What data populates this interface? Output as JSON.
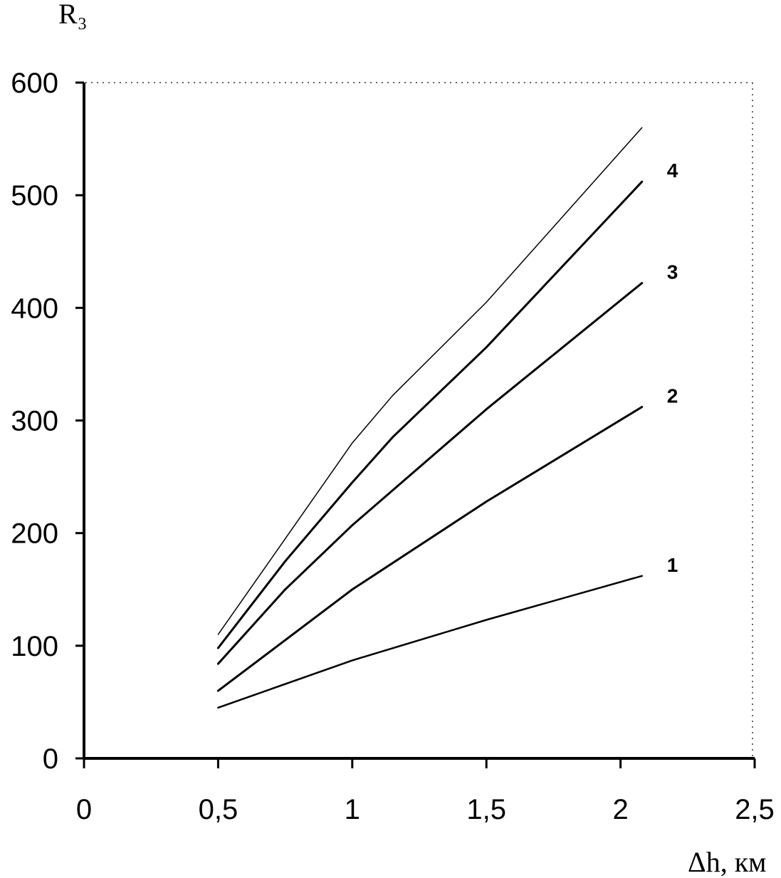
{
  "chart_data": {
    "type": "line",
    "ylabel": "R₃",
    "xlabel": "Δh, км",
    "xlim": [
      0,
      2.5
    ],
    "ylim": [
      0,
      600
    ],
    "x_ticks": [
      0,
      0.5,
      1,
      1.5,
      2,
      2.5
    ],
    "x_tick_labels": [
      "0",
      "0,5",
      "1",
      "1,5",
      "2",
      "2,5"
    ],
    "y_ticks": [
      0,
      100,
      200,
      300,
      400,
      500,
      600
    ],
    "y_tick_labels": [
      "0",
      "100",
      "200",
      "300",
      "400",
      "500",
      "600"
    ],
    "grid": false,
    "series": [
      {
        "label": "1",
        "stroke": 2.5,
        "x": [
          0.5,
          1.0,
          1.5,
          2.08
        ],
        "y": [
          45,
          87,
          123,
          162
        ]
      },
      {
        "label": "2",
        "stroke": 3.0,
        "x": [
          0.5,
          1.0,
          1.5,
          2.08
        ],
        "y": [
          60,
          150,
          228,
          312
        ]
      },
      {
        "label": "3",
        "stroke": 3.0,
        "x": [
          0.5,
          0.75,
          1.0,
          1.5,
          2.08
        ],
        "y": [
          84,
          150,
          207,
          310,
          422
        ]
      },
      {
        "label": "4",
        "stroke": 3.0,
        "x": [
          0.5,
          0.75,
          1.0,
          1.15,
          1.5,
          2.08
        ],
        "y": [
          98,
          175,
          245,
          285,
          365,
          512
        ]
      },
      {
        "label": "",
        "stroke": 1.5,
        "x": [
          0.5,
          0.75,
          1.0,
          1.15,
          1.5,
          2.08
        ],
        "y": [
          110,
          195,
          280,
          322,
          405,
          560
        ]
      }
    ]
  }
}
